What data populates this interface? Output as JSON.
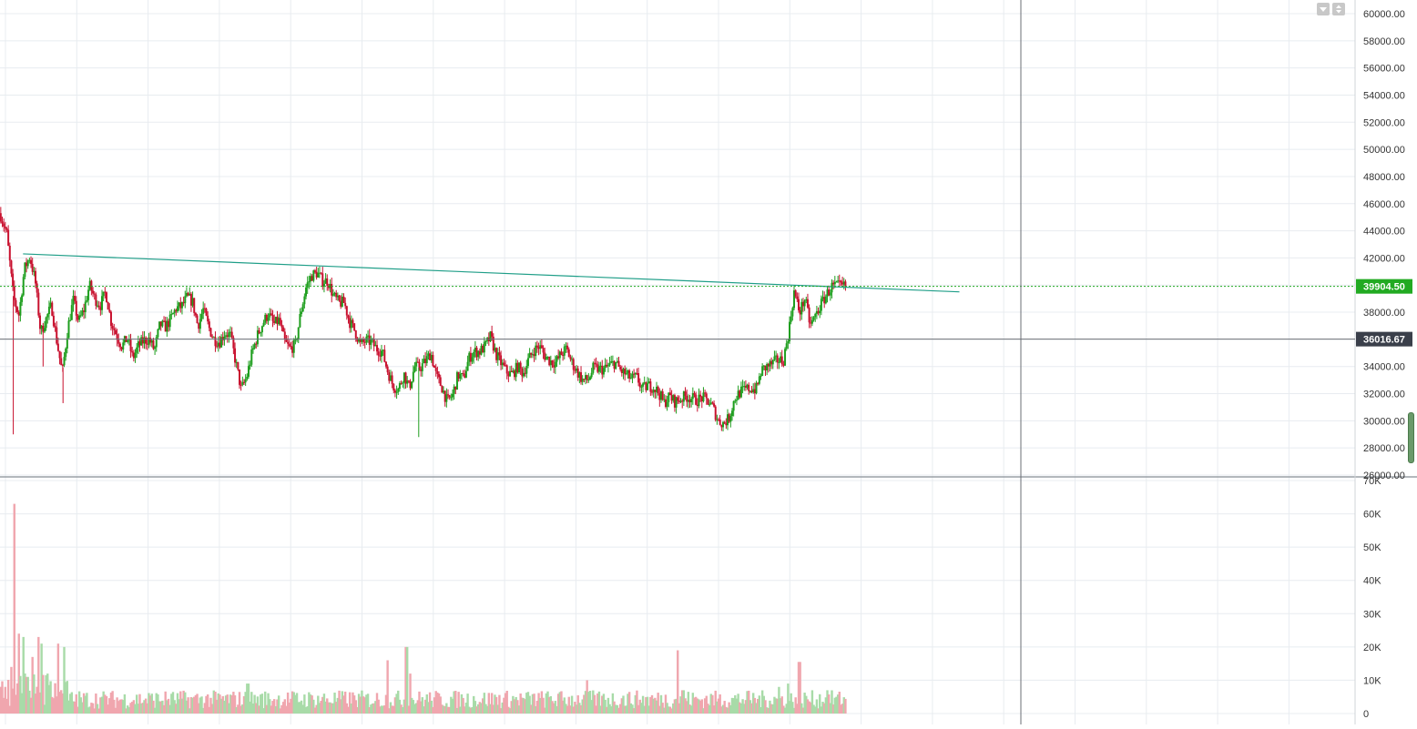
{
  "colors": {
    "up": "#1e9e1e",
    "down": "#c8102e",
    "up_volume": "#a8dba8",
    "down_volume": "#f0a6ae",
    "trendline": "#1f9e88",
    "current_price_tag": "#22aa22",
    "crosshair_tag": "#3a3f4a",
    "grid": "#e8ecf0"
  },
  "controls": {
    "collapse_icon": "triangle-down-icon",
    "scale_icon": "up-down-arrows-icon"
  },
  "chart_data": [
    {
      "type": "candlestick",
      "panel": "price",
      "ylim": [
        26000,
        60500
      ],
      "y_ticks": [
        "60000.00",
        "58000.00",
        "56000.00",
        "54000.00",
        "52000.00",
        "50000.00",
        "48000.00",
        "46000.00",
        "44000.00",
        "42000.00",
        "40000.00",
        "38000.00",
        "34000.00",
        "32000.00",
        "30000.00",
        "28000.00",
        "26000.00"
      ],
      "current_price": "39904.50",
      "crosshair_price": "36016.67",
      "trendline": {
        "start": [
          0.017,
          42300
        ],
        "end": [
          0.708,
          39500
        ]
      },
      "close_path": [
        [
          0.0,
          45300
        ],
        [
          0.005,
          43800
        ],
        [
          0.01,
          39000
        ],
        [
          0.014,
          37800
        ],
        [
          0.018,
          41200
        ],
        [
          0.022,
          42100
        ],
        [
          0.026,
          40300
        ],
        [
          0.03,
          36500
        ],
        [
          0.034,
          37500
        ],
        [
          0.038,
          38500
        ],
        [
          0.042,
          35800
        ],
        [
          0.046,
          33500
        ],
        [
          0.05,
          36800
        ],
        [
          0.054,
          38900
        ],
        [
          0.058,
          37300
        ],
        [
          0.062,
          38200
        ],
        [
          0.066,
          40000
        ],
        [
          0.07,
          39000
        ],
        [
          0.074,
          38500
        ],
        [
          0.078,
          39500
        ],
        [
          0.082,
          37300
        ],
        [
          0.086,
          36300
        ],
        [
          0.09,
          35500
        ],
        [
          0.094,
          36100
        ],
        [
          0.098,
          34600
        ],
        [
          0.102,
          35500
        ],
        [
          0.106,
          35900
        ],
        [
          0.11,
          36000
        ],
        [
          0.114,
          35200
        ],
        [
          0.118,
          37100
        ],
        [
          0.122,
          36900
        ],
        [
          0.126,
          37500
        ],
        [
          0.13,
          38300
        ],
        [
          0.134,
          38400
        ],
        [
          0.138,
          39100
        ],
        [
          0.142,
          38800
        ],
        [
          0.146,
          37000
        ],
        [
          0.15,
          38200
        ],
        [
          0.154,
          36900
        ],
        [
          0.158,
          36000
        ],
        [
          0.162,
          35800
        ],
        [
          0.166,
          36500
        ],
        [
          0.17,
          36300
        ],
        [
          0.174,
          34300
        ],
        [
          0.178,
          32300
        ],
        [
          0.182,
          33200
        ],
        [
          0.186,
          35000
        ],
        [
          0.19,
          36300
        ],
        [
          0.194,
          37200
        ],
        [
          0.198,
          37900
        ],
        [
          0.202,
          37100
        ],
        [
          0.206,
          37400
        ],
        [
          0.21,
          35800
        ],
        [
          0.214,
          35300
        ],
        [
          0.218,
          35600
        ],
        [
          0.222,
          38000
        ],
        [
          0.226,
          39900
        ],
        [
          0.23,
          40700
        ],
        [
          0.234,
          40900
        ],
        [
          0.238,
          40300
        ],
        [
          0.242,
          40300
        ],
        [
          0.246,
          39200
        ],
        [
          0.25,
          38700
        ],
        [
          0.254,
          38700
        ],
        [
          0.258,
          37300
        ],
        [
          0.262,
          36600
        ],
        [
          0.266,
          35600
        ],
        [
          0.27,
          35900
        ],
        [
          0.274,
          35800
        ],
        [
          0.278,
          35300
        ],
        [
          0.282,
          35100
        ],
        [
          0.286,
          33700
        ],
        [
          0.29,
          32600
        ],
        [
          0.294,
          32300
        ],
        [
          0.298,
          33500
        ],
        [
          0.302,
          32400
        ],
        [
          0.306,
          34000
        ],
        [
          0.31,
          33900
        ],
        [
          0.314,
          34400
        ],
        [
          0.318,
          35000
        ],
        [
          0.322,
          33300
        ],
        [
          0.326,
          32500
        ],
        [
          0.33,
          31400
        ],
        [
          0.334,
          31900
        ],
        [
          0.338,
          33400
        ],
        [
          0.342,
          33100
        ],
        [
          0.346,
          34600
        ],
        [
          0.35,
          35100
        ],
        [
          0.354,
          35100
        ],
        [
          0.358,
          35500
        ],
        [
          0.362,
          36200
        ],
        [
          0.366,
          34900
        ],
        [
          0.37,
          34200
        ],
        [
          0.374,
          33600
        ],
        [
          0.378,
          33400
        ],
        [
          0.382,
          34000
        ],
        [
          0.386,
          33500
        ],
        [
          0.39,
          34500
        ],
        [
          0.394,
          35200
        ],
        [
          0.398,
          35500
        ],
        [
          0.402,
          34800
        ],
        [
          0.406,
          34400
        ],
        [
          0.41,
          34300
        ],
        [
          0.414,
          34900
        ],
        [
          0.418,
          35300
        ],
        [
          0.422,
          34300
        ],
        [
          0.426,
          33600
        ],
        [
          0.43,
          33000
        ],
        [
          0.434,
          33000
        ],
        [
          0.438,
          33900
        ],
        [
          0.442,
          33800
        ],
        [
          0.446,
          33800
        ],
        [
          0.45,
          34100
        ],
        [
          0.454,
          34300
        ],
        [
          0.458,
          33700
        ],
        [
          0.462,
          33400
        ],
        [
          0.466,
          33100
        ],
        [
          0.47,
          33200
        ],
        [
          0.474,
          32300
        ],
        [
          0.478,
          32600
        ],
        [
          0.482,
          32500
        ],
        [
          0.486,
          32100
        ],
        [
          0.49,
          31300
        ],
        [
          0.494,
          31800
        ],
        [
          0.498,
          31400
        ],
        [
          0.502,
          31600
        ],
        [
          0.506,
          31800
        ],
        [
          0.51,
          31700
        ],
        [
          0.514,
          31500
        ],
        [
          0.518,
          31700
        ],
        [
          0.522,
          31500
        ],
        [
          0.526,
          31000
        ],
        [
          0.53,
          30000
        ],
        [
          0.534,
          29800
        ],
        [
          0.538,
          30200
        ],
        [
          0.542,
          31600
        ],
        [
          0.546,
          32100
        ],
        [
          0.55,
          32300
        ],
        [
          0.554,
          32400
        ],
        [
          0.558,
          32300
        ],
        [
          0.562,
          33700
        ],
        [
          0.566,
          34000
        ],
        [
          0.57,
          34200
        ],
        [
          0.574,
          34500
        ],
        [
          0.578,
          34400
        ],
        [
          0.582,
          36500
        ],
        [
          0.586,
          39500
        ],
        [
          0.59,
          38000
        ],
        [
          0.594,
          39000
        ],
        [
          0.598,
          37000
        ],
        [
          0.602,
          37800
        ],
        [
          0.606,
          38600
        ],
        [
          0.61,
          39300
        ],
        [
          0.614,
          39900
        ]
      ]
    },
    {
      "type": "bar",
      "panel": "volume",
      "ylim": [
        0,
        70000
      ],
      "y_ticks": [
        "70K",
        "60K",
        "50K",
        "40K",
        "30K",
        "20K",
        "10K",
        "0"
      ],
      "spikes": [
        [
          0.004,
          8000
        ],
        [
          0.008,
          14000
        ],
        [
          0.011,
          63000
        ],
        [
          0.014,
          24000
        ],
        [
          0.017,
          23000
        ],
        [
          0.02,
          11000
        ],
        [
          0.024,
          17000
        ],
        [
          0.028,
          23000
        ],
        [
          0.031,
          21000
        ],
        [
          0.035,
          12000
        ],
        [
          0.043,
          21000
        ],
        [
          0.047,
          20000
        ],
        [
          0.183,
          9000
        ],
        [
          0.286,
          16000
        ],
        [
          0.3,
          20000
        ],
        [
          0.303,
          12000
        ],
        [
          0.433,
          10000
        ],
        [
          0.5,
          19000
        ],
        [
          0.504,
          7000
        ],
        [
          0.575,
          8000
        ],
        [
          0.582,
          9000
        ],
        [
          0.59,
          15500
        ],
        [
          0.599,
          7000
        ],
        [
          0.611,
          7000
        ]
      ]
    }
  ]
}
